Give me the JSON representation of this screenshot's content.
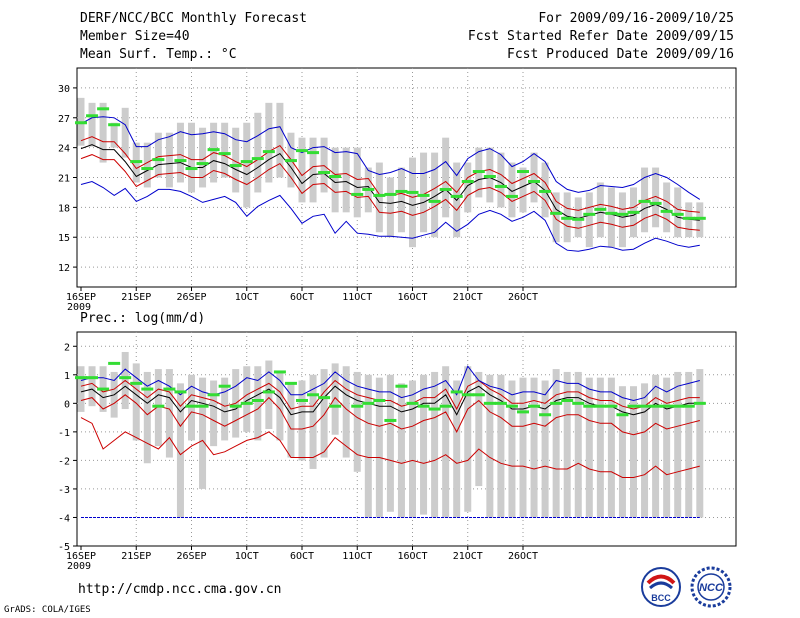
{
  "header": {
    "title": "DERF/NCC/BCC Monthly Forecast",
    "member_size": "Member Size=40",
    "variable": "Mean Surf. Temp.: °C",
    "period": "For 2009/09/16-2009/10/25",
    "started": "Fcst Started Refer Date 2009/09/15",
    "produced": "Fcst Produced Date 2009/09/16"
  },
  "footer": {
    "url": "http://cmdp.ncc.cma.gov.cn",
    "credit": "GrADS: COLA/IGES",
    "logo_bcc": "BCC",
    "logo_ncc": "NCC"
  },
  "colors": {
    "mean": "#000000",
    "sd": "#cc0000",
    "extreme": "#0000cc",
    "obs": "#33dd33",
    "box": "#cccccc",
    "grid": "#999999"
  },
  "chart_data": [
    {
      "type": "line",
      "title": "Mean Surf. Temp.: °C",
      "x_tick_labels": [
        "16SEP",
        "21SEP",
        "26SEP",
        "1OCT",
        "6OCT",
        "11OCT",
        "16OCT",
        "21OCT",
        "26OCT"
      ],
      "x_year_label": "2009",
      "ylim": [
        10,
        32
      ],
      "y_ticks": [
        12,
        15,
        18,
        21,
        24,
        27,
        30
      ],
      "series": [
        {
          "name": "ensemble-mean",
          "color": "mean",
          "values": [
            23.9,
            24.3,
            23.8,
            23.8,
            22.6,
            21.1,
            21.7,
            22.3,
            22.4,
            22.5,
            22.0,
            22.0,
            22.7,
            22.4,
            21.8,
            21.3,
            22.0,
            22.8,
            23.4,
            22.0,
            20.4,
            21.3,
            21.4,
            20.5,
            20.6,
            20.0,
            20.1,
            18.5,
            18.4,
            18.6,
            18.2,
            18.5,
            19.1,
            19.8,
            18.7,
            20.2,
            20.8,
            21.0,
            20.5,
            19.6,
            20.1,
            20.6,
            19.7,
            17.8,
            17.1,
            16.9,
            17.2,
            17.5,
            17.3,
            17.0,
            17.2,
            17.9,
            18.3,
            17.8,
            17.0,
            16.8,
            16.7
          ]
        },
        {
          "name": "mean-plus-sd",
          "color": "sd",
          "values": [
            24.7,
            25.1,
            24.6,
            24.6,
            23.4,
            21.9,
            22.5,
            23.1,
            23.2,
            23.3,
            22.8,
            22.8,
            23.5,
            23.2,
            22.6,
            22.1,
            22.8,
            23.6,
            24.2,
            22.8,
            21.2,
            22.1,
            22.2,
            21.3,
            21.4,
            20.8,
            20.9,
            19.3,
            19.2,
            19.4,
            19.0,
            19.3,
            19.9,
            20.6,
            19.5,
            21.0,
            21.6,
            21.8,
            21.3,
            20.4,
            20.9,
            21.4,
            20.5,
            18.6,
            17.9,
            17.7,
            18.0,
            18.3,
            18.1,
            17.8,
            18.0,
            18.7,
            19.1,
            18.6,
            17.8,
            17.6,
            17.5
          ]
        },
        {
          "name": "mean-minus-sd",
          "color": "sd",
          "values": [
            22.9,
            23.3,
            22.8,
            22.8,
            21.6,
            20.1,
            20.7,
            21.3,
            21.4,
            21.5,
            21.0,
            21.0,
            21.7,
            21.4,
            20.8,
            20.3,
            21.0,
            21.8,
            22.4,
            21.0,
            19.4,
            20.3,
            20.4,
            19.5,
            19.6,
            19.0,
            19.1,
            17.5,
            17.4,
            17.6,
            17.2,
            17.5,
            18.1,
            18.8,
            17.7,
            19.2,
            19.8,
            20.0,
            19.5,
            18.6,
            19.1,
            19.6,
            18.7,
            16.8,
            16.1,
            15.9,
            16.2,
            16.5,
            16.3,
            16.0,
            16.2,
            16.9,
            17.3,
            16.8,
            16.0,
            15.8,
            15.7
          ]
        },
        {
          "name": "ensemble-max",
          "color": "extreme",
          "values": [
            26.4,
            27.0,
            27.1,
            27.0,
            26.3,
            24.1,
            24.1,
            24.8,
            25.1,
            25.6,
            25.3,
            25.4,
            25.6,
            25.4,
            24.8,
            24.6,
            25.2,
            25.9,
            26.1,
            24.0,
            23.5,
            24.0,
            24.1,
            23.5,
            23.6,
            23.4,
            21.7,
            21.3,
            21.5,
            21.9,
            21.4,
            21.4,
            21.8,
            22.6,
            21.2,
            22.9,
            23.6,
            23.9,
            23.3,
            22.1,
            22.6,
            23.4,
            22.6,
            20.6,
            19.8,
            19.5,
            19.7,
            20.2,
            20.1,
            20.0,
            20.3,
            21.0,
            21.4,
            21.0,
            20.3,
            19.5,
            18.8
          ]
        },
        {
          "name": "ensemble-min",
          "color": "extreme",
          "values": [
            20.3,
            20.6,
            20.0,
            19.2,
            19.9,
            18.6,
            19.1,
            19.8,
            19.8,
            19.6,
            19.1,
            18.5,
            18.8,
            19.1,
            18.5,
            17.1,
            18.1,
            18.7,
            19.2,
            17.9,
            16.4,
            17.1,
            17.3,
            15.4,
            16.6,
            15.4,
            15.3,
            15.1,
            15.1,
            15.0,
            14.9,
            15.2,
            15.5,
            16.5,
            15.6,
            16.3,
            17.3,
            17.7,
            17.3,
            16.6,
            17.0,
            17.6,
            16.7,
            14.4,
            13.7,
            13.6,
            13.8,
            14.1,
            14.0,
            13.7,
            13.8,
            14.4,
            14.9,
            14.6,
            14.2,
            14.0,
            14.2
          ]
        }
      ],
      "boxes": {
        "low": [
          24.2,
          24.1,
          22.5,
          24.0,
          23.0,
          20.5,
          20.0,
          21.0,
          20.0,
          20.5,
          19.5,
          20.0,
          20.5,
          21.0,
          19.5,
          18.0,
          19.5,
          20.5,
          21.0,
          20.0,
          18.5,
          18.5,
          19.5,
          17.5,
          17.5,
          17.0,
          17.5,
          15.5,
          15.0,
          15.5,
          14.0,
          15.5,
          15.0,
          17.0,
          15.0,
          17.5,
          19.0,
          18.5,
          18.0,
          17.0,
          17.5,
          18.5,
          17.0,
          14.5,
          14.5,
          15.0,
          14.0,
          15.0,
          14.0,
          14.0,
          15.0,
          15.5,
          16.0,
          15.5,
          15.0,
          15.0,
          15.0
        ],
        "high": [
          29.0,
          28.5,
          28.5,
          26.5,
          28.0,
          24.5,
          24.5,
          25.5,
          25.5,
          26.5,
          26.5,
          26.0,
          26.5,
          26.5,
          26.0,
          26.5,
          27.5,
          28.5,
          28.5,
          25.5,
          25.0,
          25.0,
          25.0,
          24.0,
          24.0,
          24.0,
          22.0,
          22.5,
          21.0,
          22.0,
          23.0,
          23.5,
          23.5,
          25.0,
          22.5,
          22.5,
          24.0,
          24.0,
          23.5,
          22.5,
          22.0,
          23.5,
          22.5,
          19.5,
          19.5,
          19.0,
          19.5,
          20.5,
          20.0,
          19.5,
          20.0,
          22.0,
          22.0,
          20.5,
          20.0,
          18.5,
          18.5
        ]
      },
      "observed": [
        26.5,
        27.2,
        27.9,
        26.3,
        null,
        22.6,
        21.9,
        22.8,
        null,
        22.7,
        21.9,
        22.4,
        23.8,
        23.4,
        22.2,
        22.6,
        22.9,
        23.6,
        null,
        22.7,
        23.7,
        23.5,
        21.5,
        21.1,
        null,
        19.3,
        19.8,
        19.2,
        19.3,
        19.6,
        19.5,
        19.2,
        18.6,
        19.8,
        19.1,
        20.6,
        21.6,
        21.1,
        20.1,
        19.1,
        21.6,
        20.6,
        19.6,
        17.4,
        16.9,
        16.8,
        17.3,
        17.8,
        17.4,
        17.3,
        17.5,
        18.6,
        18.4,
        17.6,
        17.3,
        16.9,
        16.9
      ]
    },
    {
      "type": "line",
      "title": "Prec.: log(mm/d)",
      "x_tick_labels": [
        "16SEP",
        "21SEP",
        "26SEP",
        "1OCT",
        "6OCT",
        "11OCT",
        "16OCT",
        "21OCT",
        "26OCT"
      ],
      "x_year_label": "2009",
      "ylim": [
        -5,
        2.5
      ],
      "y_ticks": [
        -5,
        -4,
        -3,
        -2,
        -1,
        0,
        1,
        2
      ],
      "series": [
        {
          "name": "ensemble-mean",
          "color": "mean",
          "values": [
            0.4,
            0.5,
            0.2,
            0.3,
            0.6,
            0.3,
            0.0,
            0.3,
            0.2,
            -0.3,
            0.1,
            0.0,
            -0.1,
            -0.3,
            -0.2,
            0.1,
            0.3,
            0.5,
            0.2,
            -0.4,
            -0.3,
            -0.3,
            0.2,
            0.6,
            0.3,
            0.1,
            0.0,
            -0.1,
            -0.1,
            -0.3,
            -0.2,
            0.0,
            0.0,
            0.3,
            -0.4,
            0.4,
            0.6,
            0.3,
            0.1,
            -0.2,
            -0.2,
            -0.1,
            -0.2,
            0.1,
            0.2,
            0.2,
            0.0,
            -0.1,
            -0.1,
            -0.3,
            -0.4,
            -0.3,
            0.0,
            -0.2,
            -0.1,
            0.0,
            0.0
          ]
        },
        {
          "name": "mean-plus-sd",
          "color": "sd",
          "values": [
            0.6,
            0.7,
            0.4,
            0.5,
            0.8,
            0.5,
            0.2,
            0.5,
            0.4,
            -0.1,
            0.3,
            0.2,
            0.1,
            -0.1,
            0.0,
            0.3,
            0.5,
            0.7,
            0.4,
            -0.2,
            -0.1,
            -0.1,
            0.4,
            0.8,
            0.5,
            0.3,
            0.2,
            0.1,
            0.1,
            -0.1,
            0.0,
            0.2,
            0.2,
            0.5,
            -0.2,
            0.6,
            0.8,
            0.5,
            0.3,
            0.0,
            0.0,
            0.1,
            0.0,
            0.3,
            0.4,
            0.4,
            0.2,
            0.1,
            0.1,
            -0.1,
            -0.2,
            -0.1,
            0.2,
            0.0,
            0.1,
            0.2,
            0.2
          ]
        },
        {
          "name": "mean-minus-sd",
          "color": "sd",
          "values": [
            0.1,
            0.2,
            -0.2,
            0.0,
            0.3,
            0.0,
            -0.4,
            -0.1,
            -0.2,
            -0.8,
            -0.3,
            -0.4,
            -0.6,
            -0.8,
            -0.6,
            -0.4,
            -0.2,
            0.2,
            -0.2,
            -0.9,
            -0.9,
            -0.8,
            -0.4,
            0.2,
            -0.2,
            -0.5,
            -0.7,
            -0.8,
            -0.7,
            -0.9,
            -0.8,
            -0.6,
            -0.5,
            -0.3,
            -1.0,
            -0.2,
            0.1,
            -0.3,
            -0.5,
            -0.8,
            -0.8,
            -0.7,
            -0.8,
            -0.5,
            -0.4,
            -0.4,
            -0.6,
            -0.7,
            -0.7,
            -1.0,
            -1.1,
            -1.0,
            -0.7,
            -0.9,
            -0.8,
            -0.7,
            -0.6
          ]
        },
        {
          "name": "ensemble-max",
          "color": "extreme",
          "values": [
            0.8,
            0.9,
            0.9,
            0.8,
            1.2,
            0.9,
            0.6,
            0.8,
            0.6,
            0.3,
            0.6,
            0.4,
            0.3,
            0.4,
            0.6,
            0.9,
            0.8,
            1.1,
            0.8,
            0.3,
            0.3,
            0.5,
            0.7,
            1.1,
            0.8,
            0.6,
            0.5,
            0.4,
            0.4,
            0.2,
            0.3,
            0.5,
            0.6,
            0.8,
            0.3,
            1.3,
            0.8,
            0.6,
            0.5,
            0.3,
            0.4,
            0.4,
            0.3,
            0.8,
            0.7,
            0.7,
            0.5,
            0.4,
            0.4,
            0.2,
            0.1,
            0.2,
            0.6,
            0.4,
            0.6,
            0.7,
            0.8
          ]
        },
        {
          "name": "ensemble-min",
          "color": "extreme",
          "values": [
            -4,
            -4,
            -4,
            -4,
            -4,
            -4,
            -4,
            -4,
            -4,
            -4,
            -4,
            -4,
            -4,
            -4,
            -4,
            -4,
            -4,
            -4,
            -4,
            -4,
            -4,
            -4,
            -4,
            -4,
            -4,
            -4,
            -4,
            -4,
            -4,
            -4,
            -4,
            -4,
            -4,
            -4,
            -4,
            -4,
            -4,
            -4,
            -4,
            -4,
            -4,
            -4,
            -4,
            -4,
            -4,
            -4,
            -4,
            -4,
            -4,
            -4,
            -4,
            -4,
            -4,
            -4,
            -4,
            -4,
            -4
          ]
        },
        {
          "name": "lower-bound",
          "color": "sd",
          "values": [
            -0.5,
            -0.7,
            -1.6,
            -1.3,
            -1.0,
            -1.2,
            -1.4,
            -1.6,
            -1.2,
            -1.8,
            -1.5,
            -1.3,
            -1.8,
            -1.7,
            -1.5,
            -1.3,
            -1.2,
            -1.0,
            -1.3,
            -1.9,
            -1.9,
            -1.9,
            -1.7,
            -1.2,
            -1.5,
            -1.8,
            -1.9,
            -1.9,
            -2.0,
            -2.1,
            -2.0,
            -2.1,
            -2.0,
            -1.8,
            -2.1,
            -2.0,
            -1.6,
            -1.9,
            -2.1,
            -2.2,
            -2.2,
            -2.3,
            -2.2,
            -2.3,
            -2.3,
            -2.1,
            -2.3,
            -2.4,
            -2.4,
            -2.6,
            -2.6,
            -2.5,
            -2.2,
            -2.5,
            -2.4,
            -2.3,
            -2.2
          ]
        }
      ],
      "boxes": {
        "low": [
          -0.3,
          -0.1,
          -0.3,
          -0.5,
          -0.2,
          -1.3,
          -2.1,
          -1.5,
          -1.9,
          -4.0,
          -1.3,
          -3.0,
          -1.5,
          -1.3,
          -1.2,
          -1.0,
          -1.3,
          -0.9,
          -1.3,
          -1.9,
          -2.0,
          -2.3,
          -1.9,
          -1.1,
          -1.9,
          -2.4,
          -4.0,
          -4.0,
          -3.8,
          -4.0,
          -4.0,
          -3.9,
          -4.0,
          -4.0,
          -4.0,
          -3.8,
          -2.9,
          -4.0,
          -4.0,
          -4.0,
          -4.0,
          -4.0,
          -4.0,
          -4.0,
          -4.0,
          -4.0,
          -4.0,
          -4.0,
          -4.0,
          -4.0,
          -4.0,
          -4.0,
          -4.0,
          -4.0,
          -4.0,
          -4.0,
          -4.0
        ],
        "high": [
          1.3,
          1.3,
          1.3,
          1.1,
          1.8,
          1.4,
          1.1,
          1.2,
          1.2,
          0.7,
          1.0,
          0.9,
          0.8,
          0.9,
          1.2,
          1.3,
          1.3,
          1.5,
          1.1,
          0.7,
          0.8,
          1.0,
          1.2,
          1.4,
          1.3,
          1.1,
          1.0,
          0.9,
          1.0,
          0.7,
          0.8,
          1.0,
          1.1,
          1.3,
          0.8,
          1.3,
          1.1,
          1.0,
          1.0,
          0.8,
          0.9,
          0.9,
          0.8,
          1.2,
          1.1,
          1.1,
          0.9,
          0.9,
          0.9,
          0.6,
          0.6,
          0.7,
          1.0,
          0.9,
          1.1,
          1.1,
          1.2
        ]
      },
      "observed": [
        0.9,
        0.9,
        0.5,
        1.4,
        0.9,
        0.7,
        0.5,
        -0.1,
        0.5,
        0.4,
        -0.1,
        -0.1,
        0.3,
        0.6,
        -0.1,
        0.0,
        0.1,
        0.4,
        1.1,
        0.7,
        0.1,
        0.3,
        0.2,
        -0.1,
        null,
        -0.1,
        0.0,
        0.1,
        -0.6,
        0.6,
        0.0,
        -0.1,
        -0.2,
        -0.1,
        0.4,
        0.3,
        0.3,
        0.0,
        0.0,
        -0.1,
        -0.3,
        -0.1,
        -0.4,
        0.0,
        0.1,
        0.0,
        -0.1,
        -0.1,
        -0.1,
        -0.4,
        -0.1,
        -0.1,
        -0.1,
        -0.1,
        -0.1,
        -0.1,
        0.0
      ]
    }
  ]
}
